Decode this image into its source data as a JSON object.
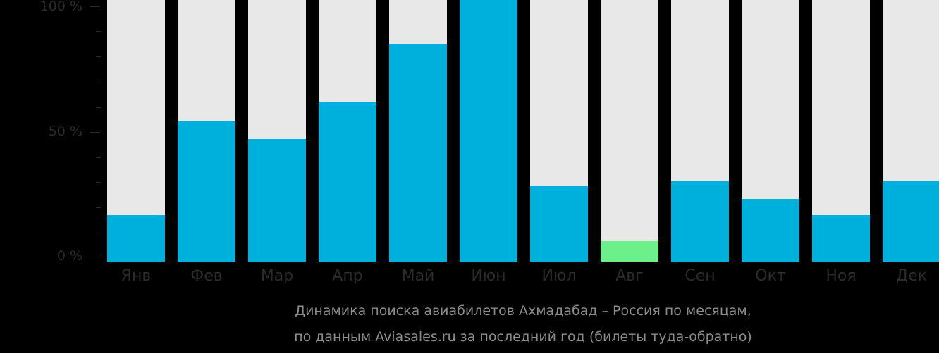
{
  "chart_data": {
    "type": "bar",
    "title": "Динамика поиска авиабилетов Ахмадабад – Россия по месяцам,",
    "subtitle": "по данным Aviasales.ru за последний год (билеты туда-обратно)",
    "xlabel": "",
    "ylabel": "",
    "ylim": [
      0,
      100
    ],
    "y_ticks": [
      "0 %",
      "50 %",
      "100 %"
    ],
    "categories": [
      "Янв",
      "Фев",
      "Мар",
      "Апр",
      "Май",
      "Июн",
      "Июл",
      "Авг",
      "Сен",
      "Окт",
      "Ноя",
      "Дек"
    ],
    "values": [
      18,
      54,
      47,
      61,
      83,
      100,
      29,
      8,
      31,
      24,
      18,
      31
    ],
    "highlight_index": 7,
    "colors": {
      "bar": "#00b0dc",
      "highlight": "#6bf08a",
      "track": "#e8e8e8",
      "background": "#000000"
    },
    "grid": false,
    "legend": null
  },
  "axis": {
    "y100": "100 %",
    "y50": "50 %",
    "y0": "0 %"
  },
  "months": [
    "Янв",
    "Фев",
    "Мар",
    "Апр",
    "Май",
    "Июн",
    "Июл",
    "Авг",
    "Сен",
    "Окт",
    "Ноя",
    "Дек"
  ],
  "caption": {
    "line1": "Динамика поиска авиабилетов Ахмадабад – Россия по месяцам,",
    "line2": "по данным Aviasales.ru за последний год (билеты туда-обратно)"
  }
}
